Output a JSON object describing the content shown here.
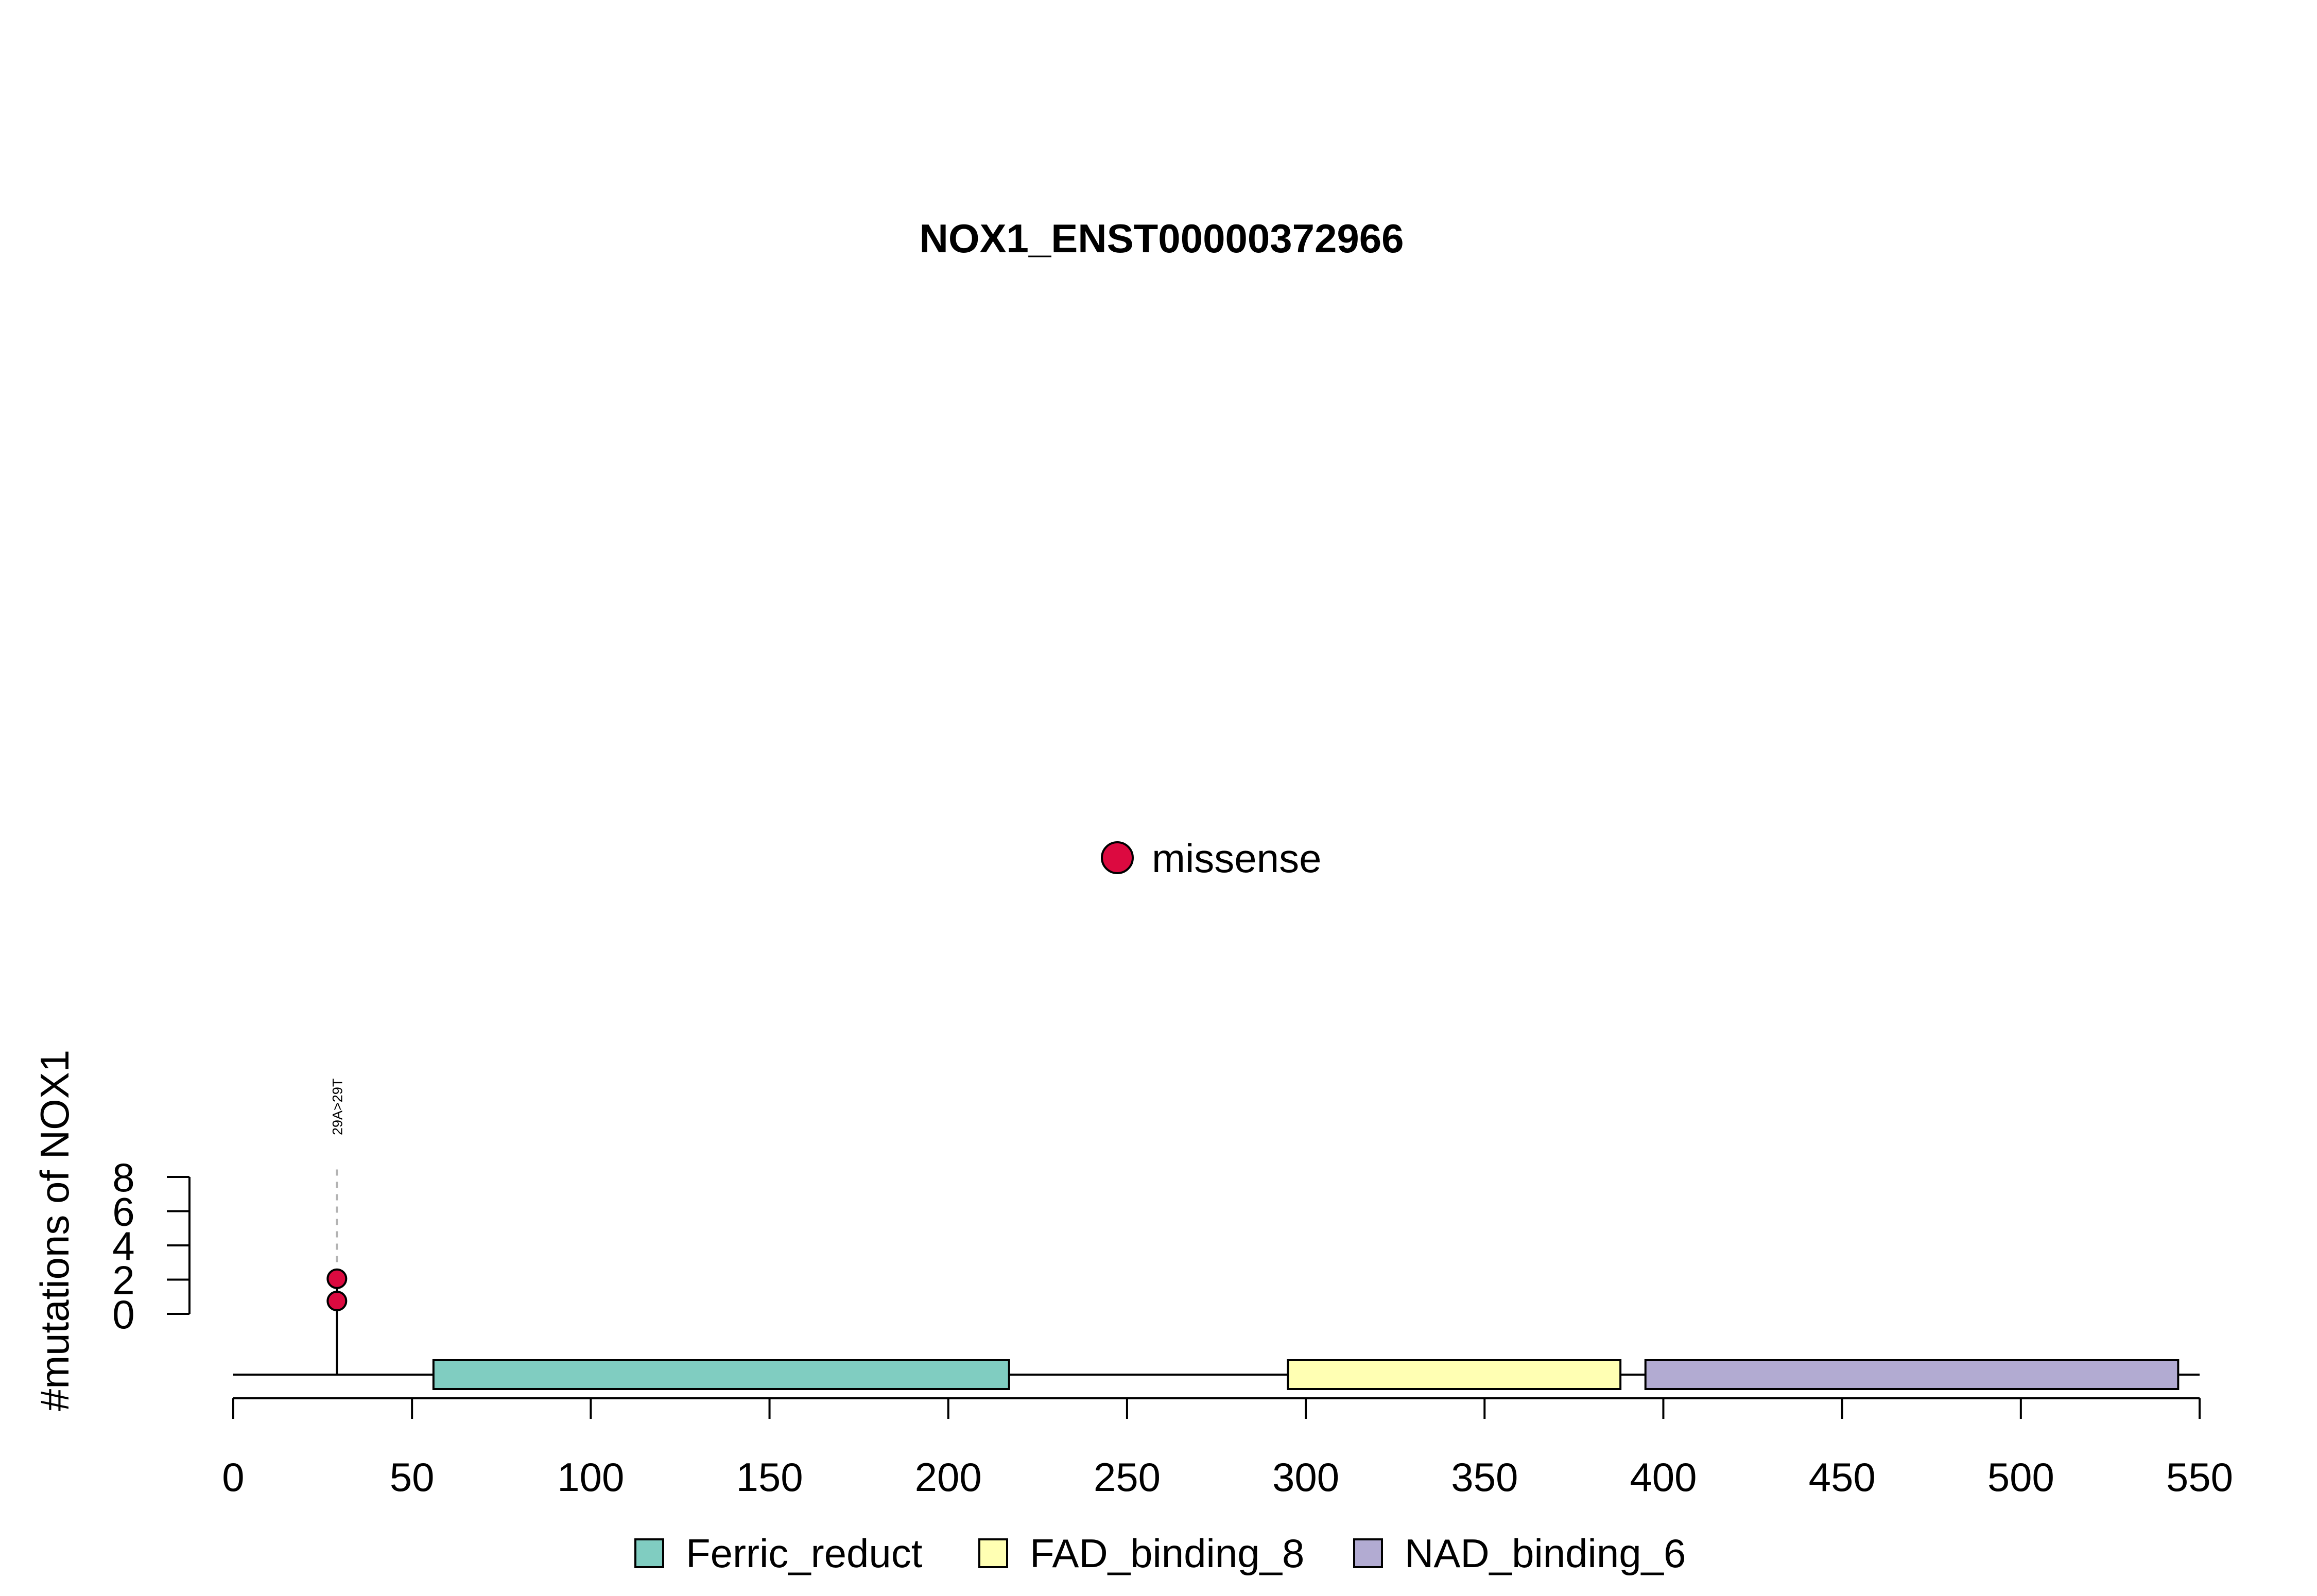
{
  "chart_data": {
    "type": "lollipop",
    "title": "NOX1_ENST00000372966",
    "ylabel": "#mutations of NOX1",
    "xlim": [
      0,
      550
    ],
    "ylim": [
      0,
      8
    ],
    "x_ticks": [
      "0",
      "50",
      "100",
      "150",
      "200",
      "250",
      "300",
      "350",
      "400",
      "450",
      "500",
      "550"
    ],
    "y_ticks": [
      "0",
      "2",
      "4",
      "6",
      "8"
    ],
    "mutations": [
      {
        "position": 29,
        "count": 2,
        "type": "missense",
        "label": "29A>29T"
      }
    ],
    "mutation_legend": [
      {
        "name": "missense",
        "color": "#DC0A40"
      }
    ],
    "domains": [
      {
        "name": "Ferric_reduct",
        "start": 56,
        "end": 217,
        "color": "#80CDC1"
      },
      {
        "name": "FAD_binding_8",
        "start": 295,
        "end": 388,
        "color": "#FFFFB3"
      },
      {
        "name": "NAD_binding_6",
        "start": 395,
        "end": 544,
        "color": "#B2ABD2"
      }
    ],
    "protein_length": 550
  }
}
